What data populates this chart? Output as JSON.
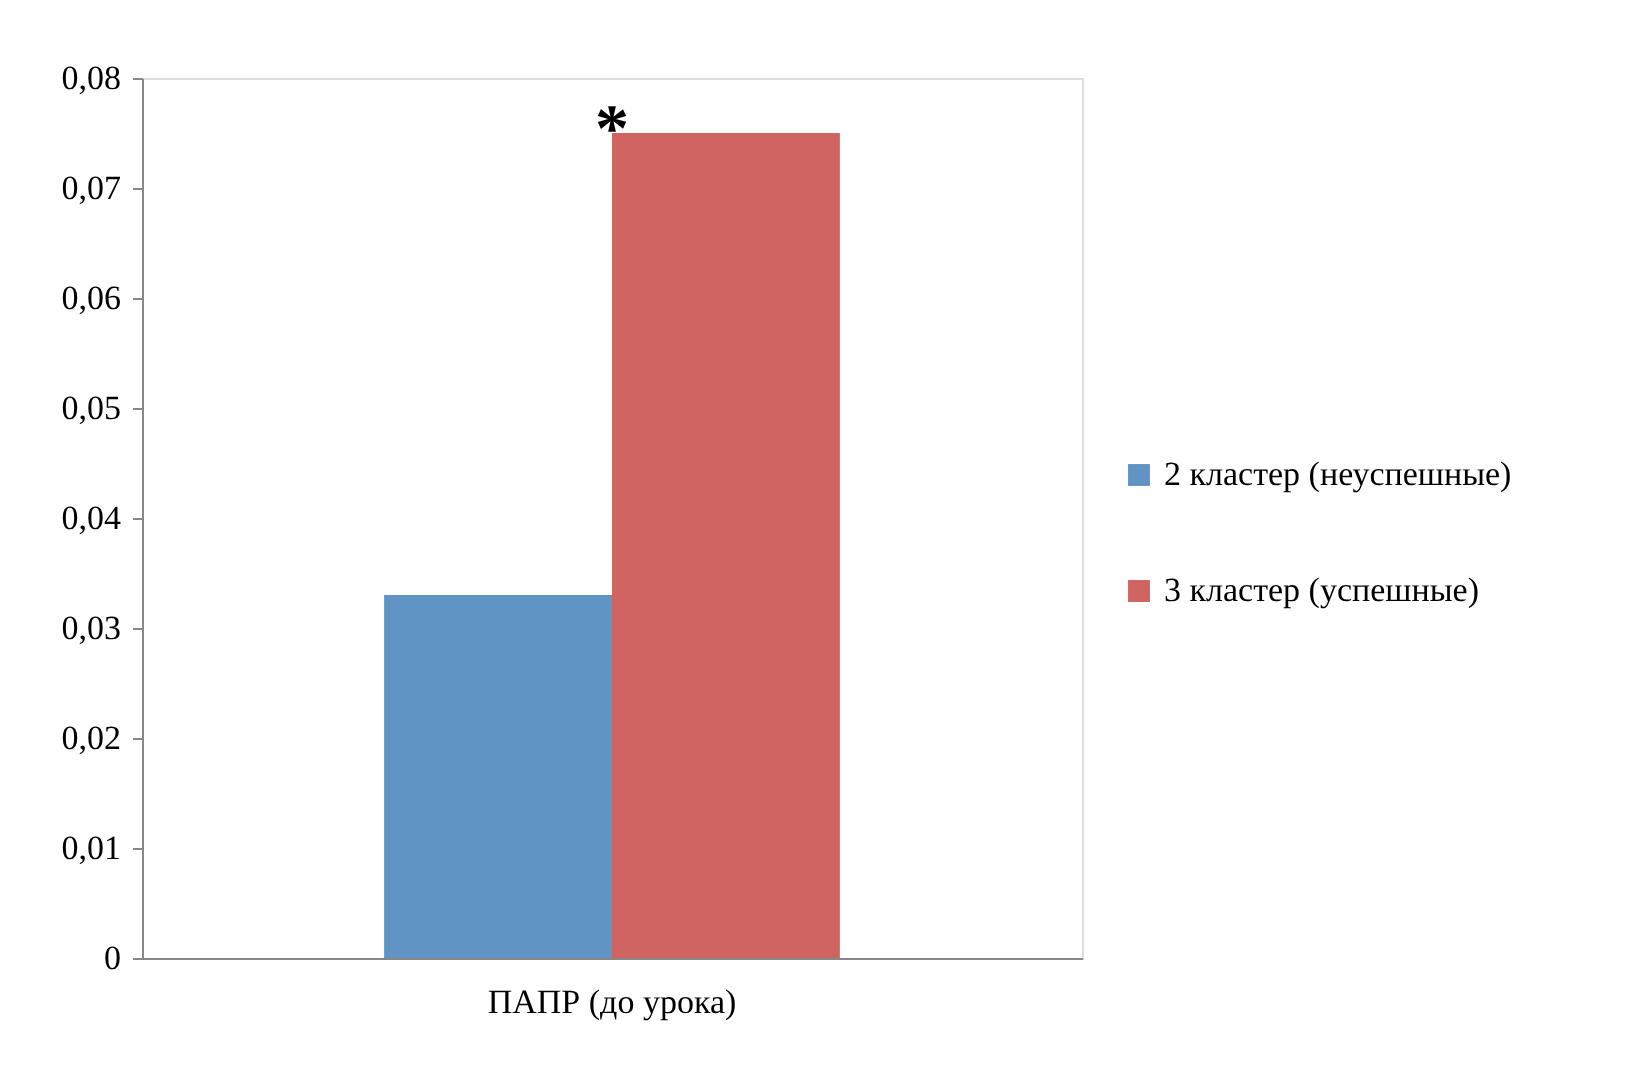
{
  "chart_data": {
    "type": "bar",
    "categories": [
      "ПАПР (до урока)"
    ],
    "series": [
      {
        "name": "2 кластер (неуспешные)",
        "color": "#5f94c4",
        "values": [
          0.033
        ]
      },
      {
        "name": "3 кластер (успешные)",
        "color": "#d06461",
        "values": [
          0.075
        ]
      }
    ],
    "ylim": [
      0,
      0.08
    ],
    "yticks": [
      0,
      {
        "value": 0.01,
        "label": "0,01"
      },
      {
        "value": 0.02,
        "label": "0,02"
      },
      {
        "value": 0.03,
        "label": "0,03"
      },
      {
        "value": 0.04,
        "label": "0,04"
      },
      {
        "value": 0.05,
        "label": "0,05"
      },
      {
        "value": 0.06,
        "label": "0,06"
      },
      {
        "value": 0.07,
        "label": "0,07"
      },
      {
        "value": 0.08,
        "label": "0,08"
      }
    ],
    "annotations": [
      {
        "text": "*",
        "x": "ПАПР (до урока)",
        "y": 0.075
      }
    ],
    "grid": false,
    "legend": "right"
  }
}
